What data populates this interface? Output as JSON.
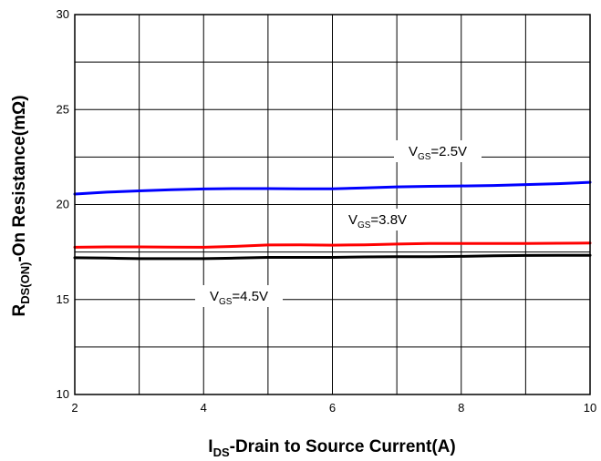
{
  "chart_data": {
    "type": "line",
    "title": "",
    "xlabel": {
      "main": "I",
      "sub": "DS",
      "rest": "-Drain to Source Current(A)"
    },
    "ylabel": {
      "main": "R",
      "sub": "DS(ON)",
      "rest": "-On Resistance(mΩ)"
    },
    "xlim": [
      2,
      10
    ],
    "ylim": [
      10,
      30
    ],
    "xticks": [
      2,
      4,
      6,
      8,
      10
    ],
    "yticks": [
      10,
      15,
      20,
      25,
      30
    ],
    "grid": true,
    "series": [
      {
        "label": {
          "main": "V",
          "sub": "GS",
          "rest": "=2.5V"
        },
        "color": "#0000ff",
        "x": [
          2,
          2.5,
          3,
          3.5,
          4,
          4.5,
          5,
          5.5,
          6,
          6.5,
          7,
          7.5,
          8,
          8.5,
          9,
          9.5,
          10
        ],
        "y": [
          20.55,
          20.65,
          20.72,
          20.78,
          20.82,
          20.84,
          20.84,
          20.83,
          20.83,
          20.88,
          20.93,
          20.96,
          20.98,
          21.0,
          21.05,
          21.1,
          21.17
        ]
      },
      {
        "label": {
          "main": "V",
          "sub": "GS",
          "rest": "=3.8V"
        },
        "color": "#ff0000",
        "x": [
          2,
          2.5,
          3,
          3.5,
          4,
          4.5,
          5,
          5.5,
          6,
          6.5,
          7,
          7.5,
          8,
          8.5,
          9,
          9.5,
          10
        ],
        "y": [
          17.75,
          17.77,
          17.77,
          17.76,
          17.75,
          17.8,
          17.87,
          17.88,
          17.86,
          17.88,
          17.92,
          17.95,
          17.95,
          17.95,
          17.95,
          17.96,
          17.97
        ]
      },
      {
        "label": {
          "main": "V",
          "sub": "GS",
          "rest": "=4.5V"
        },
        "color": "#000000",
        "x": [
          2,
          2.5,
          3,
          3.5,
          4,
          4.5,
          5,
          5.5,
          6,
          6.5,
          7,
          7.5,
          8,
          8.5,
          9,
          9.5,
          10
        ],
        "y": [
          17.2,
          17.18,
          17.15,
          17.15,
          17.15,
          17.18,
          17.22,
          17.22,
          17.22,
          17.24,
          17.25,
          17.25,
          17.27,
          17.3,
          17.32,
          17.33,
          17.33
        ]
      }
    ]
  }
}
